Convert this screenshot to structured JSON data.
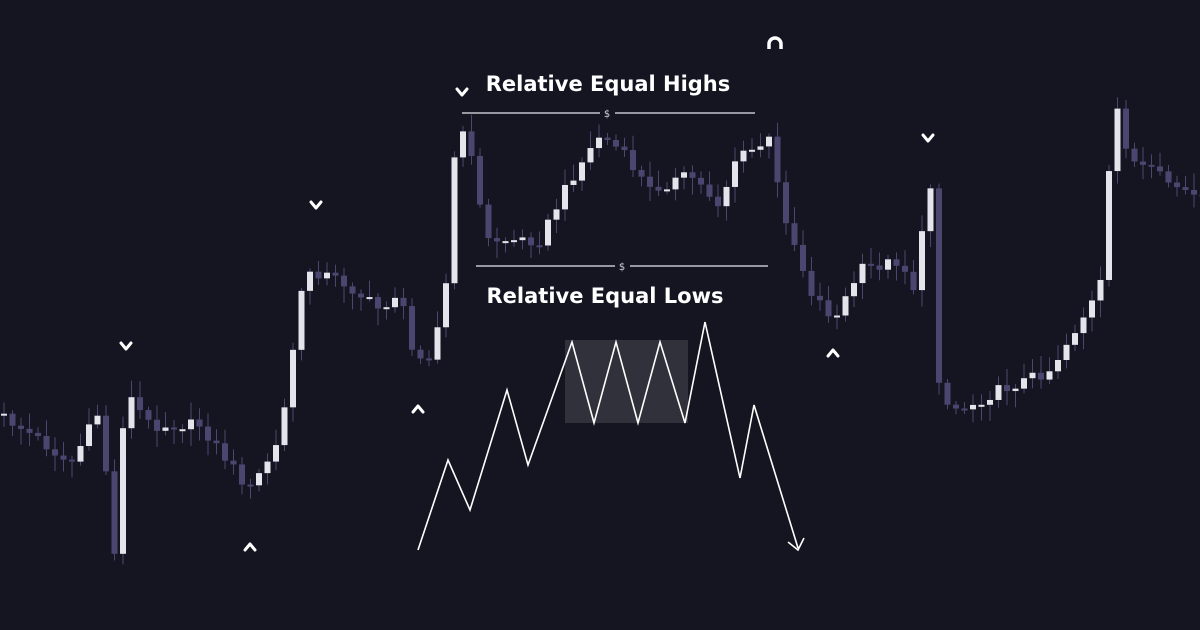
{
  "annotations": {
    "highs_label": "Relative Equal Highs",
    "highs_marker": "$",
    "lows_label": "Relative Equal Lows",
    "lows_marker": "$"
  }
}
